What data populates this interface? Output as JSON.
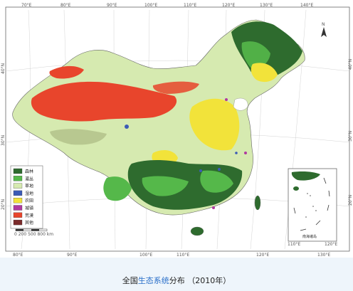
{
  "caption": {
    "prefix": "全国",
    "highlight": "生态系统",
    "suffix": "分布 （2010年）"
  },
  "map": {
    "longitude_top": [
      "70°E",
      "80°E",
      "90°E",
      "100°E",
      "110°E",
      "120°E",
      "130°E",
      "140°E"
    ],
    "longitude_bottom": [
      "80°E",
      "90°E",
      "100°E",
      "110°E",
      "120°E",
      "130°E"
    ],
    "latitude_left": [
      "40°N",
      "30°N",
      "20°N"
    ],
    "latitude_right": [
      "40°N",
      "30°N",
      "20°N"
    ],
    "north_label": "N",
    "scale_label": "0  200  500  800 km",
    "inset_label": "南海诸岛",
    "inset_lon": [
      "110°E",
      "120°E"
    ],
    "legend": [
      {
        "label": "森林",
        "color": "#2e6b2e"
      },
      {
        "label": "灌丛",
        "color": "#55b84a"
      },
      {
        "label": "草地",
        "color": "#d6eab0"
      },
      {
        "label": "湿地",
        "color": "#3b5bb5"
      },
      {
        "label": "农田",
        "color": "#f2e33a"
      },
      {
        "label": "城镇",
        "color": "#b03aa0"
      },
      {
        "label": "荒漠",
        "color": "#e8452c"
      },
      {
        "label": "其他",
        "color": "#7a2a2a"
      }
    ],
    "colors": {
      "frame": "#444444",
      "sea": "#ffffff",
      "outside": "#f5f5f5"
    }
  }
}
